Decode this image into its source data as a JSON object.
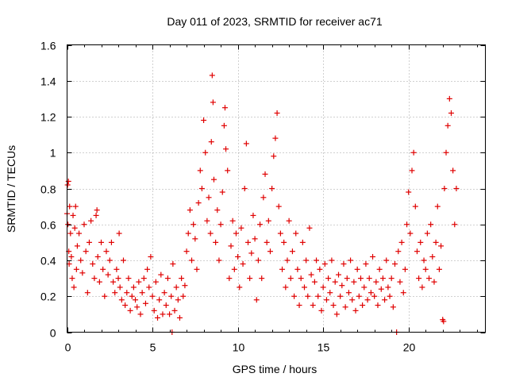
{
  "chart_data": {
    "type": "scatter",
    "title": "Day 011 of 2023, SRMTID for receiver ac71",
    "xlabel": "GPS time / hours",
    "ylabel": "SRMTID / TECUs",
    "xlim": [
      0,
      24.5
    ],
    "ylim": [
      0,
      1.6
    ],
    "xticks": [
      0,
      5,
      10,
      15,
      20
    ],
    "yticks": [
      0,
      0.2,
      0.4,
      0.6,
      0.8,
      1,
      1.2,
      1.4,
      1.6
    ],
    "ytick_labels": [
      "0",
      "0.2",
      "0.4",
      "0.6",
      "0.8",
      "1",
      "1.2",
      "1.4",
      "1.6"
    ],
    "grid": true,
    "marker": "+",
    "color": "#e00000",
    "series": [
      {
        "name": "SRMTID",
        "points": [
          [
            0.0,
            0.66
          ],
          [
            0.03,
            0.82
          ],
          [
            0.05,
            0.6
          ],
          [
            0.08,
            0.84
          ],
          [
            0.1,
            0.45
          ],
          [
            0.12,
            0.38
          ],
          [
            0.15,
            0.7
          ],
          [
            0.2,
            0.55
          ],
          [
            0.25,
            0.42
          ],
          [
            0.3,
            0.3
          ],
          [
            0.35,
            0.65
          ],
          [
            0.4,
            0.25
          ],
          [
            0.45,
            0.58
          ],
          [
            0.5,
            0.7
          ],
          [
            0.55,
            0.35
          ],
          [
            0.6,
            0.48
          ],
          [
            0.7,
            0.55
          ],
          [
            0.8,
            0.4
          ],
          [
            0.9,
            0.33
          ],
          [
            1.0,
            0.6
          ],
          [
            1.1,
            0.45
          ],
          [
            1.2,
            0.22
          ],
          [
            1.3,
            0.5
          ],
          [
            1.4,
            0.62
          ],
          [
            1.5,
            0.38
          ],
          [
            1.6,
            0.3
          ],
          [
            1.7,
            0.65
          ],
          [
            1.75,
            0.68
          ],
          [
            1.8,
            0.42
          ],
          [
            1.9,
            0.28
          ],
          [
            2.0,
            0.5
          ],
          [
            2.1,
            0.35
          ],
          [
            2.2,
            0.2
          ],
          [
            2.3,
            0.45
          ],
          [
            2.4,
            0.32
          ],
          [
            2.5,
            0.4
          ],
          [
            2.6,
            0.5
          ],
          [
            2.7,
            0.28
          ],
          [
            2.8,
            0.22
          ],
          [
            2.9,
            0.35
          ],
          [
            3.0,
            0.3
          ],
          [
            3.05,
            0.55
          ],
          [
            3.1,
            0.25
          ],
          [
            3.2,
            0.18
          ],
          [
            3.3,
            0.4
          ],
          [
            3.4,
            0.15
          ],
          [
            3.5,
            0.22
          ],
          [
            3.6,
            0.3
          ],
          [
            3.7,
            0.12
          ],
          [
            3.8,
            0.2
          ],
          [
            3.9,
            0.25
          ],
          [
            4.0,
            0.18
          ],
          [
            4.1,
            0.14
          ],
          [
            4.2,
            0.28
          ],
          [
            4.3,
            0.1
          ],
          [
            4.4,
            0.22
          ],
          [
            4.5,
            0.3
          ],
          [
            4.6,
            0.16
          ],
          [
            4.7,
            0.35
          ],
          [
            4.8,
            0.25
          ],
          [
            4.9,
            0.42
          ],
          [
            5.0,
            0.2
          ],
          [
            5.1,
            0.12
          ],
          [
            5.2,
            0.28
          ],
          [
            5.3,
            0.08
          ],
          [
            5.4,
            0.18
          ],
          [
            5.5,
            0.32
          ],
          [
            5.6,
            0.1
          ],
          [
            5.7,
            0.22
          ],
          [
            5.8,
            0.15
          ],
          [
            5.9,
            0.3
          ],
          [
            6.0,
            0.1
          ],
          [
            6.1,
            0.2
          ],
          [
            6.15,
            0.0
          ],
          [
            6.2,
            0.38
          ],
          [
            6.3,
            0.12
          ],
          [
            6.4,
            0.25
          ],
          [
            6.5,
            0.18
          ],
          [
            6.6,
            0.08
          ],
          [
            6.7,
            0.3
          ],
          [
            6.8,
            0.2
          ],
          [
            6.9,
            0.26
          ],
          [
            7.0,
            0.45
          ],
          [
            7.1,
            0.55
          ],
          [
            7.2,
            0.68
          ],
          [
            7.3,
            0.4
          ],
          [
            7.4,
            0.6
          ],
          [
            7.5,
            0.52
          ],
          [
            7.6,
            0.35
          ],
          [
            7.7,
            0.72
          ],
          [
            7.8,
            0.9
          ],
          [
            7.9,
            0.8
          ],
          [
            8.0,
            1.18
          ],
          [
            8.1,
            1.0
          ],
          [
            8.2,
            0.62
          ],
          [
            8.3,
            0.75
          ],
          [
            8.4,
            0.55
          ],
          [
            8.45,
            1.06
          ],
          [
            8.5,
            1.43
          ],
          [
            8.55,
            1.28
          ],
          [
            8.6,
            0.85
          ],
          [
            8.7,
            0.5
          ],
          [
            8.8,
            0.68
          ],
          [
            8.9,
            0.4
          ],
          [
            9.0,
            0.6
          ],
          [
            9.1,
            0.78
          ],
          [
            9.2,
            1.15
          ],
          [
            9.25,
            1.25
          ],
          [
            9.3,
            1.02
          ],
          [
            9.4,
            0.9
          ],
          [
            9.5,
            0.3
          ],
          [
            9.6,
            0.48
          ],
          [
            9.7,
            0.62
          ],
          [
            9.8,
            0.35
          ],
          [
            9.9,
            0.55
          ],
          [
            10.0,
            0.42
          ],
          [
            10.1,
            0.25
          ],
          [
            10.2,
            0.58
          ],
          [
            10.3,
            0.38
          ],
          [
            10.4,
            0.8
          ],
          [
            10.5,
            1.05
          ],
          [
            10.6,
            0.5
          ],
          [
            10.7,
            0.3
          ],
          [
            10.8,
            0.44
          ],
          [
            10.9,
            0.65
          ],
          [
            11.0,
            0.52
          ],
          [
            11.1,
            0.18
          ],
          [
            11.2,
            0.4
          ],
          [
            11.3,
            0.6
          ],
          [
            11.4,
            0.3
          ],
          [
            11.5,
            0.75
          ],
          [
            11.6,
            0.88
          ],
          [
            11.7,
            0.5
          ],
          [
            11.8,
            0.62
          ],
          [
            11.9,
            0.45
          ],
          [
            12.0,
            0.8
          ],
          [
            12.1,
            0.98
          ],
          [
            12.2,
            1.08
          ],
          [
            12.3,
            1.22
          ],
          [
            12.4,
            0.7
          ],
          [
            12.5,
            0.55
          ],
          [
            12.6,
            0.35
          ],
          [
            12.7,
            0.5
          ],
          [
            12.8,
            0.25
          ],
          [
            12.9,
            0.4
          ],
          [
            13.0,
            0.62
          ],
          [
            13.1,
            0.3
          ],
          [
            13.2,
            0.45
          ],
          [
            13.3,
            0.2
          ],
          [
            13.4,
            0.55
          ],
          [
            13.5,
            0.35
          ],
          [
            13.6,
            0.15
          ],
          [
            13.7,
            0.3
          ],
          [
            13.8,
            0.5
          ],
          [
            13.9,
            0.25
          ],
          [
            14.0,
            0.4
          ],
          [
            14.1,
            0.2
          ],
          [
            14.2,
            0.58
          ],
          [
            14.3,
            0.32
          ],
          [
            14.4,
            0.15
          ],
          [
            14.5,
            0.28
          ],
          [
            14.6,
            0.4
          ],
          [
            14.7,
            0.2
          ],
          [
            14.8,
            0.35
          ],
          [
            14.9,
            0.12
          ],
          [
            15.0,
            0.25
          ],
          [
            15.1,
            0.38
          ],
          [
            15.2,
            0.18
          ],
          [
            15.3,
            0.3
          ],
          [
            15.4,
            0.22
          ],
          [
            15.5,
            0.4
          ],
          [
            15.6,
            0.15
          ],
          [
            15.7,
            0.28
          ],
          [
            15.8,
            0.1
          ],
          [
            15.9,
            0.32
          ],
          [
            16.0,
            0.2
          ],
          [
            16.1,
            0.26
          ],
          [
            16.2,
            0.38
          ],
          [
            16.3,
            0.14
          ],
          [
            16.4,
            0.3
          ],
          [
            16.5,
            0.22
          ],
          [
            16.6,
            0.4
          ],
          [
            16.7,
            0.18
          ],
          [
            16.8,
            0.28
          ],
          [
            16.9,
            0.12
          ],
          [
            17.0,
            0.35
          ],
          [
            17.1,
            0.2
          ],
          [
            17.2,
            0.3
          ],
          [
            17.3,
            0.15
          ],
          [
            17.4,
            0.25
          ],
          [
            17.5,
            0.38
          ],
          [
            17.6,
            0.18
          ],
          [
            17.7,
            0.3
          ],
          [
            17.8,
            0.22
          ],
          [
            17.9,
            0.42
          ],
          [
            18.0,
            0.2
          ],
          [
            18.1,
            0.28
          ],
          [
            18.2,
            0.15
          ],
          [
            18.3,
            0.35
          ],
          [
            18.4,
            0.24
          ],
          [
            18.5,
            0.3
          ],
          [
            18.6,
            0.18
          ],
          [
            18.7,
            0.4
          ],
          [
            18.8,
            0.25
          ],
          [
            18.9,
            0.2
          ],
          [
            19.0,
            0.3
          ],
          [
            19.1,
            0.14
          ],
          [
            19.2,
            0.38
          ],
          [
            19.3,
            0.0
          ],
          [
            19.4,
            0.45
          ],
          [
            19.5,
            0.28
          ],
          [
            19.6,
            0.5
          ],
          [
            19.7,
            0.22
          ],
          [
            19.8,
            0.35
          ],
          [
            19.9,
            0.6
          ],
          [
            20.0,
            0.78
          ],
          [
            20.1,
            0.55
          ],
          [
            20.2,
            0.9
          ],
          [
            20.3,
            1.0
          ],
          [
            20.4,
            0.7
          ],
          [
            20.5,
            0.45
          ],
          [
            20.6,
            0.3
          ],
          [
            20.7,
            0.5
          ],
          [
            20.8,
            0.25
          ],
          [
            20.9,
            0.4
          ],
          [
            21.0,
            0.35
          ],
          [
            21.1,
            0.55
          ],
          [
            21.2,
            0.3
          ],
          [
            21.3,
            0.6
          ],
          [
            21.4,
            0.42
          ],
          [
            21.5,
            0.28
          ],
          [
            21.6,
            0.5
          ],
          [
            21.7,
            0.7
          ],
          [
            21.8,
            0.35
          ],
          [
            21.9,
            0.48
          ],
          [
            22.0,
            0.07
          ],
          [
            22.05,
            0.06
          ],
          [
            22.1,
            0.8
          ],
          [
            22.2,
            1.0
          ],
          [
            22.3,
            1.15
          ],
          [
            22.4,
            1.3
          ],
          [
            22.5,
            1.22
          ],
          [
            22.6,
            0.9
          ],
          [
            22.7,
            0.6
          ],
          [
            22.8,
            0.8
          ]
        ]
      }
    ]
  }
}
